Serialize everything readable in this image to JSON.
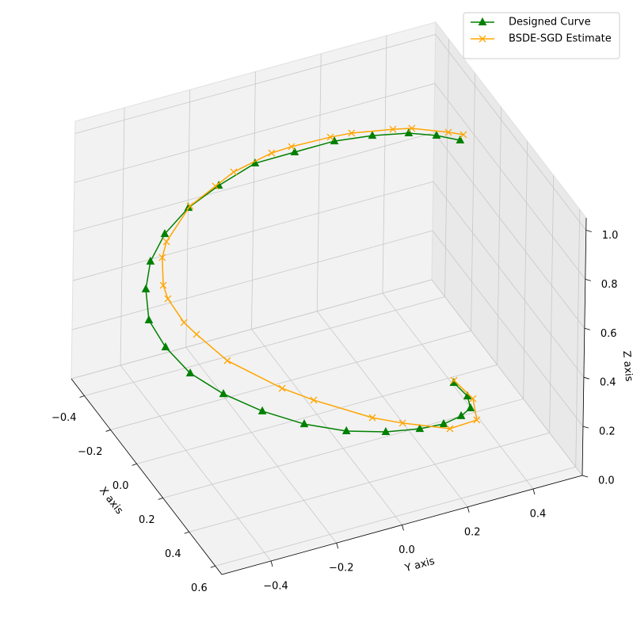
{
  "chart_data": {
    "type": "line3d",
    "xlabel": "X axis",
    "ylabel": "Y axis",
    "zlabel": "Z axis",
    "xlim": [
      -0.5,
      0.65
    ],
    "ylim": [
      -0.55,
      0.55
    ],
    "zlim": [
      0,
      1.05
    ],
    "xticks": [
      {
        "value": -0.4,
        "label": "−0.4"
      },
      {
        "value": -0.2,
        "label": "−0.2"
      },
      {
        "value": 0,
        "label": "0.0"
      },
      0.2,
      0.4,
      0.6
    ],
    "yticks": [
      {
        "value": -0.4,
        "label": "−0.4"
      },
      {
        "value": -0.2,
        "label": "−0.2"
      },
      {
        "value": 0,
        "label": "0.0"
      },
      0.2,
      0.4
    ],
    "zticks": [
      {
        "value": 0,
        "label": "0.0"
      },
      0.2,
      0.4,
      0.6,
      0.8,
      {
        "value": 1,
        "label": "1.0"
      }
    ],
    "grid": true,
    "legend": "upper right",
    "series": [
      {
        "name": "Designed Curve",
        "color": "green",
        "marker": "^",
        "x": [
          0.029,
          0.16,
          0.269,
          0.342,
          0.405,
          0.444,
          0.461,
          0.452,
          0.409,
          0.338,
          0.25,
          0.153,
          0.041,
          -0.065,
          -0.172,
          -0.253,
          -0.32,
          -0.368,
          -0.388,
          -0.4,
          -0.354,
          -0.307,
          -0.236,
          -0.152,
          -0.056,
          0.046
        ],
        "y": [
          0.406,
          0.395,
          0.36,
          0.302,
          0.223,
          0.134,
          0.023,
          -0.094,
          -0.206,
          -0.306,
          -0.39,
          -0.453,
          -0.484,
          -0.493,
          -0.46,
          -0.414,
          -0.344,
          -0.253,
          -0.153,
          -0.038,
          0.064,
          0.166,
          0.253,
          0.33,
          0.376,
          0.407
        ],
        "z": [
          0,
          0.04,
          0.08,
          0.12,
          0.16,
          0.2,
          0.24,
          0.28,
          0.32,
          0.36,
          0.4,
          0.44,
          0.48,
          0.52,
          0.56,
          0.6,
          0.64,
          0.68,
          0.72,
          0.76,
          0.8,
          0.84,
          0.88,
          0.92,
          0.96,
          1.0
        ]
      },
      {
        "name": "BSDE-SGD Estimate",
        "color": "orange",
        "marker": "x",
        "x": [
          0.018,
          0.179,
          0.335,
          0.389,
          0.346,
          0.327,
          0.211,
          0.159,
          -0.001,
          -0.122,
          -0.149,
          -0.238,
          -0.262,
          -0.351,
          -0.375,
          -0.469,
          -0.484,
          -0.481,
          -0.475,
          -0.432,
          -0.379,
          -0.323,
          -0.239,
          -0.171,
          -0.056,
          0.023
        ],
        "y": [
          0.411,
          0.404,
          0.353,
          0.249,
          0.121,
          0.036,
          -0.097,
          -0.173,
          -0.277,
          -0.323,
          -0.351,
          -0.365,
          -0.37,
          -0.338,
          -0.316,
          -0.207,
          -0.124,
          -0.07,
          0.043,
          0.086,
          0.183,
          0.225,
          0.317,
          0.347,
          0.412,
          0.426
        ],
        "z": [
          0,
          0.04,
          0.08,
          0.12,
          0.16,
          0.2,
          0.24,
          0.28,
          0.32,
          0.36,
          0.4,
          0.44,
          0.48,
          0.52,
          0.56,
          0.6,
          0.64,
          0.68,
          0.72,
          0.76,
          0.8,
          0.84,
          0.88,
          0.92,
          0.96,
          1.0
        ]
      }
    ]
  }
}
